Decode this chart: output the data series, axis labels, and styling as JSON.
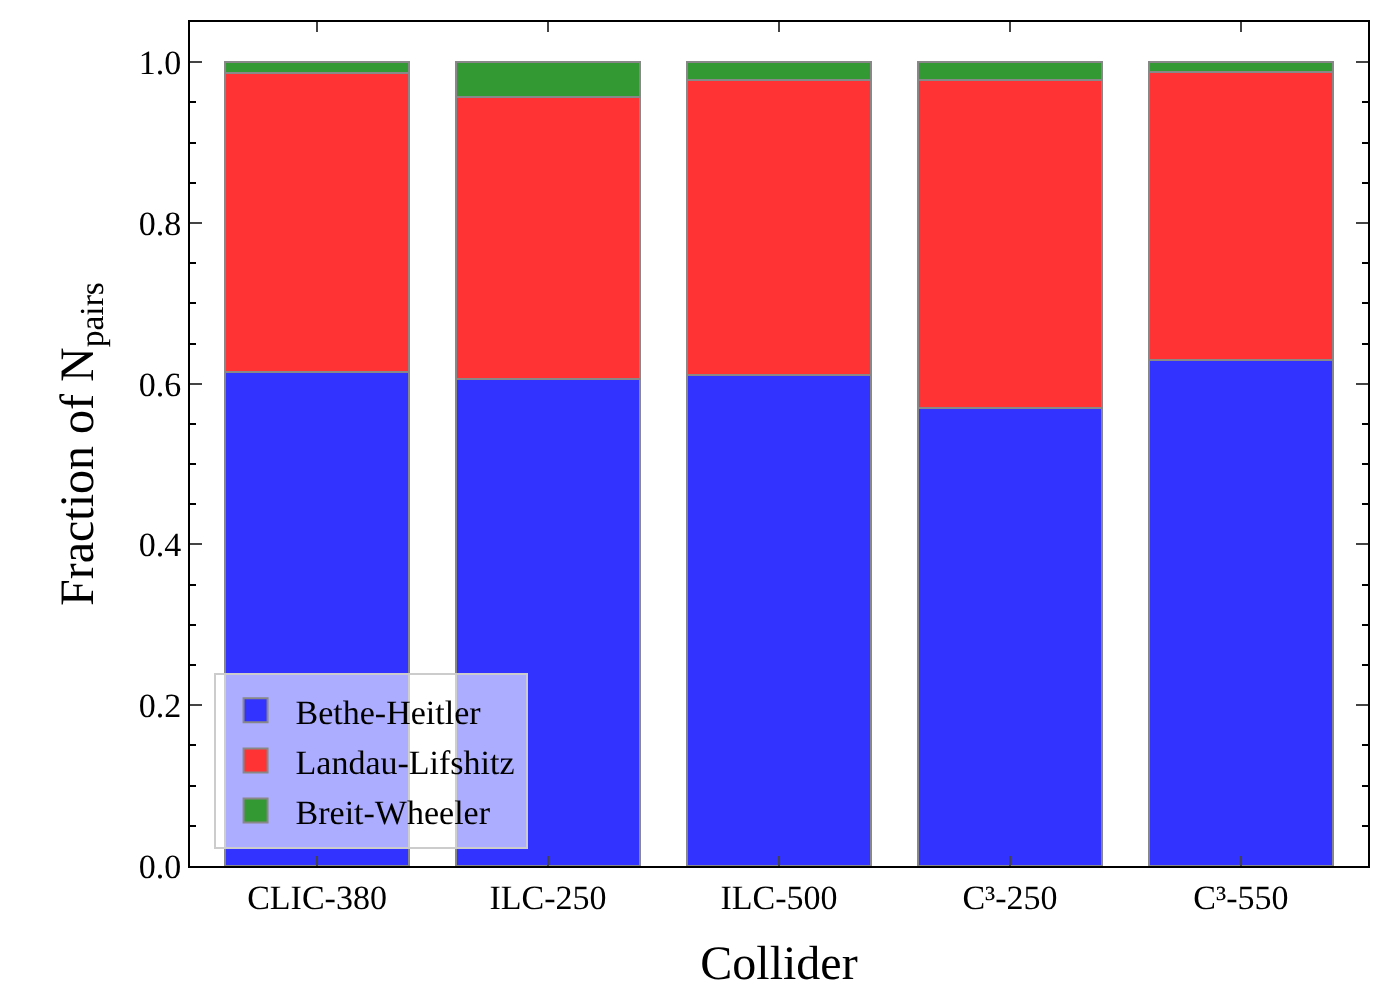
{
  "chart_data": {
    "type": "bar",
    "stacked": true,
    "xlabel": "Collider",
    "ylabel": "Fraction of N$_{pairs}$",
    "categories": [
      "CLIC-380",
      "ILC-250",
      "ILC-500",
      "C³-250",
      "C³-550"
    ],
    "series": [
      {
        "name": "Bethe-Heitler",
        "color": "#3333ff",
        "values": [
          0.615,
          0.606,
          0.611,
          0.57,
          0.63
        ]
      },
      {
        "name": "Landau-Lifshitz",
        "color": "#ff3333",
        "values": [
          0.371,
          0.351,
          0.367,
          0.408,
          0.358
        ]
      },
      {
        "name": "Breit-Wheeler",
        "color": "#339933",
        "values": [
          0.014,
          0.043,
          0.022,
          0.022,
          0.012
        ]
      }
    ],
    "ylim": [
      0,
      1.05
    ],
    "yticks": [
      {
        "value": 0,
        "label": "0.0"
      },
      {
        "value": 0.2,
        "label": "0.2"
      },
      {
        "value": 0.4,
        "label": "0.4"
      },
      {
        "value": 0.6,
        "label": "0.6"
      },
      {
        "value": 0.8,
        "label": "0.8"
      },
      {
        "value": 1,
        "label": "1.0"
      }
    ],
    "legend": "bottom left"
  }
}
